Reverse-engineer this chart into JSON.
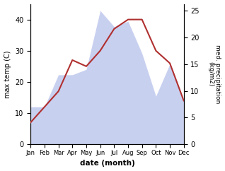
{
  "months": [
    "Jan",
    "Feb",
    "Mar",
    "Apr",
    "May",
    "Jun",
    "Jul",
    "Aug",
    "Sep",
    "Oct",
    "Nov",
    "Dec"
  ],
  "temperature": [
    7,
    12,
    17,
    27,
    25,
    30,
    37,
    40,
    40,
    30,
    26,
    14
  ],
  "precipitation": [
    7,
    7,
    13,
    13,
    14,
    25,
    22,
    23,
    17,
    9,
    15,
    8
  ],
  "temp_color": "#b03030",
  "precip_fill_color": "#c8d0f0",
  "temp_ylim": [
    0,
    45
  ],
  "precip_ylim": [
    0,
    26.25
  ],
  "temp_yticks": [
    0,
    10,
    20,
    30,
    40
  ],
  "precip_yticks": [
    0,
    5,
    10,
    15,
    20,
    25
  ],
  "ylabel_left": "max temp (C)",
  "ylabel_right": "med. precipitation\n(kg/m2)",
  "xlabel": "date (month)",
  "fig_width": 3.18,
  "fig_height": 2.42,
  "dpi": 100
}
